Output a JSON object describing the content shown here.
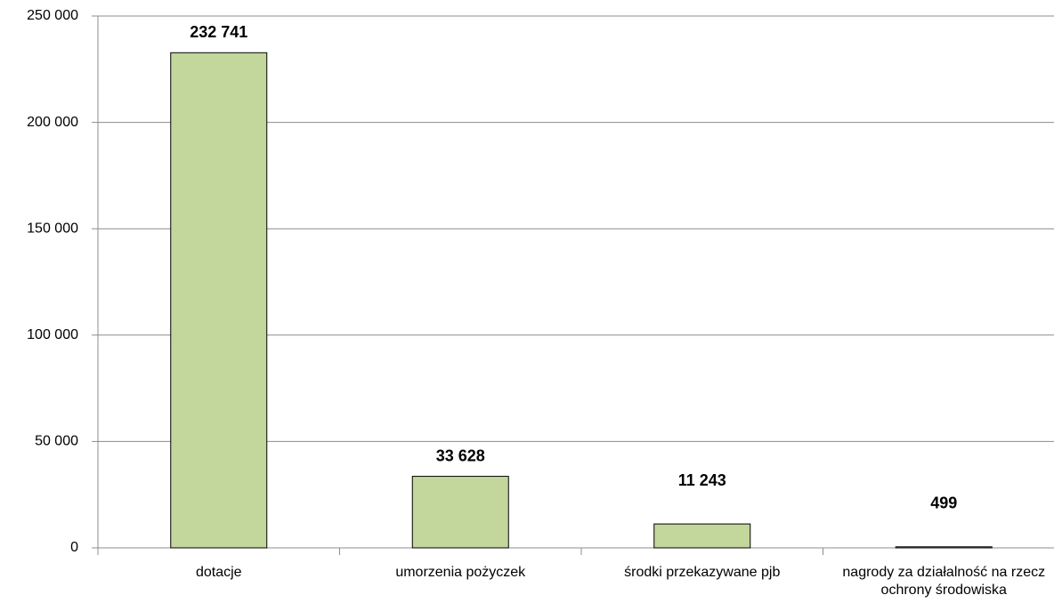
{
  "chart_data": {
    "type": "bar",
    "categories": [
      "dotacje",
      "umorzenia pożyczek",
      "środki przekazywane pjb",
      "nagrody za działalność na rzecz ochrony środowiska"
    ],
    "values": [
      232741,
      33628,
      11243,
      499
    ],
    "value_labels": [
      "232 741",
      "33 628",
      "11 243",
      "499"
    ],
    "color": "#c3d69b",
    "ylim": [
      0,
      250000
    ],
    "yticks": [
      0,
      {
        "value": 50000,
        "label": "50 000"
      },
      {
        "value": 100000,
        "label": "100 000"
      },
      {
        "value": 150000,
        "label": "150 000"
      },
      {
        "value": 200000,
        "label": "200 000"
      },
      {
        "value": 250000,
        "label": "250 000"
      }
    ],
    "grid": true
  }
}
